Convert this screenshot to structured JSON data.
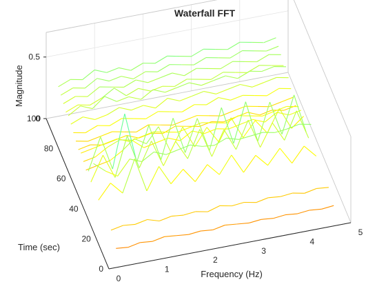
{
  "chart_data": {
    "type": "waterfall",
    "title": "Waterfall FFT",
    "xlabel": "Frequency (Hz)",
    "ylabel": "Time (sec)",
    "zlabel": "Magnitude",
    "xlim": [
      0,
      5
    ],
    "ylim": [
      0,
      100
    ],
    "zlim": [
      0,
      0.7
    ],
    "xticks": [
      "0",
      "1",
      "2",
      "3",
      "4",
      "5"
    ],
    "yticks": [
      "0",
      "20",
      "40",
      "60",
      "80",
      "100"
    ],
    "zticks": [
      "0",
      "0.5"
    ],
    "grid": true,
    "colormap": "jet",
    "x": [
      0.25,
      0.5,
      0.75,
      1,
      1.25,
      1.5,
      1.75,
      2,
      2.25,
      2.5,
      2.75,
      3,
      3.25,
      3.5,
      3.75,
      4,
      4.25,
      4.5,
      4.75
    ],
    "series": [
      {
        "t": 8,
        "values": [
          0.05,
          0.04,
          0.06,
          0.05,
          0.07,
          0.06,
          0.05,
          0.06,
          0.05,
          0.07,
          0.06,
          0.05,
          0.06,
          0.05,
          0.06,
          0.05,
          0.06,
          0.05,
          0.06
        ]
      },
      {
        "t": 16,
        "values": [
          0.1,
          0.12,
          0.11,
          0.13,
          0.1,
          0.12,
          0.11,
          0.12,
          0.1,
          0.13,
          0.11,
          0.12,
          0.1,
          0.12,
          0.11,
          0.12,
          0.1,
          0.12,
          0.11
        ]
      },
      {
        "t": 36,
        "values": [
          0.1,
          0.22,
          0.12,
          0.38,
          0.1,
          0.28,
          0.12,
          0.22,
          0.1,
          0.22,
          0.12,
          0.26,
          0.1,
          0.22,
          0.12,
          0.24,
          0.1,
          0.22,
          0.12
        ]
      },
      {
        "t": 44,
        "values": [
          0.3,
          0.22,
          0.16,
          0.28,
          0.24,
          0.3,
          0.26,
          0.28,
          0.3,
          0.27,
          0.26,
          0.3,
          0.27,
          0.28,
          0.29,
          0.27,
          0.28,
          0.3,
          0.28
        ]
      },
      {
        "t": 48,
        "values": [
          0.1,
          0.3,
          0.1,
          0.42,
          0.14,
          0.34,
          0.12,
          0.3,
          0.14,
          0.36,
          0.12,
          0.32,
          0.14,
          0.36,
          0.12,
          0.3,
          0.14,
          0.36,
          0.12
        ]
      },
      {
        "t": 52,
        "values": [
          0.14,
          0.4,
          0.12,
          0.55,
          0.14,
          0.42,
          0.12,
          0.44,
          0.14,
          0.4,
          0.12,
          0.45,
          0.14,
          0.46,
          0.12,
          0.42,
          0.14,
          0.44,
          0.12
        ]
      },
      {
        "t": 56,
        "values": [
          0.1,
          0.12,
          0.14,
          0.2,
          0.28,
          0.22,
          0.34,
          0.12,
          0.3,
          0.12,
          0.26,
          0.12,
          0.3,
          0.12,
          0.24,
          0.12,
          0.3,
          0.12,
          0.2
        ]
      },
      {
        "t": 60,
        "values": [
          0.12,
          0.14,
          0.2,
          0.24,
          0.22,
          0.14,
          0.16,
          0.18,
          0.14,
          0.2,
          0.16,
          0.18,
          0.16,
          0.18,
          0.2,
          0.16,
          0.22,
          0.18,
          0.2
        ]
      },
      {
        "t": 64,
        "values": [
          0.14,
          0.16,
          0.18,
          0.2,
          0.16,
          0.18,
          0.2,
          0.18,
          0.16,
          0.18,
          0.2,
          0.18,
          0.16,
          0.2,
          0.18,
          0.16,
          0.18,
          0.2,
          0.18
        ]
      },
      {
        "t": 68,
        "values": [
          0.12,
          0.14,
          0.12,
          0.14,
          0.16,
          0.12,
          0.14,
          0.12,
          0.16,
          0.14,
          0.12,
          0.14,
          0.12,
          0.14,
          0.16,
          0.12,
          0.14,
          0.12,
          0.14
        ]
      },
      {
        "t": 72,
        "values": [
          0.14,
          0.12,
          0.14,
          0.16,
          0.14,
          0.12,
          0.16,
          0.14,
          0.12,
          0.14,
          0.16,
          0.14,
          0.12,
          0.14,
          0.16,
          0.14,
          0.12,
          0.14,
          0.16
        ]
      },
      {
        "t": 76,
        "values": [
          0.16,
          0.14,
          0.18,
          0.16,
          0.2,
          0.18,
          0.16,
          0.2,
          0.18,
          0.16,
          0.2,
          0.18,
          0.22,
          0.18,
          0.2,
          0.18,
          0.16,
          0.2,
          0.18
        ]
      },
      {
        "t": 80,
        "values": [
          0.18,
          0.22,
          0.18,
          0.2,
          0.24,
          0.2,
          0.22,
          0.18,
          0.24,
          0.2,
          0.22,
          0.24,
          0.2,
          0.22,
          0.24,
          0.2,
          0.22,
          0.24,
          0.22
        ]
      },
      {
        "t": 84,
        "values": [
          0.2,
          0.26,
          0.22,
          0.3,
          0.24,
          0.26,
          0.22,
          0.28,
          0.24,
          0.26,
          0.28,
          0.24,
          0.26,
          0.28,
          0.24,
          0.28,
          0.26,
          0.28,
          0.26
        ]
      },
      {
        "t": 88,
        "values": [
          0.18,
          0.22,
          0.2,
          0.24,
          0.3,
          0.22,
          0.26,
          0.22,
          0.24,
          0.22,
          0.26,
          0.24,
          0.22,
          0.26,
          0.24,
          0.22,
          0.26,
          0.24,
          0.22
        ]
      },
      {
        "t": 92,
        "values": [
          0.2,
          0.24,
          0.22,
          0.28,
          0.26,
          0.24,
          0.28,
          0.24,
          0.26,
          0.28,
          0.24,
          0.28,
          0.26,
          0.24,
          0.28,
          0.26,
          0.24,
          0.28,
          0.26
        ]
      },
      {
        "t": 96,
        "values": [
          0.22,
          0.26,
          0.24,
          0.3,
          0.26,
          0.28,
          0.24,
          0.28,
          0.26,
          0.3,
          0.28,
          0.26,
          0.3,
          0.28,
          0.26,
          0.3,
          0.28,
          0.26,
          0.28
        ]
      },
      {
        "t": 100,
        "values": [
          0.24,
          0.28,
          0.26,
          0.32,
          0.28,
          0.3,
          0.26,
          0.3,
          0.28,
          0.32,
          0.3,
          0.28,
          0.32,
          0.3,
          0.28,
          0.32,
          0.3,
          0.28,
          0.3
        ]
      }
    ]
  }
}
